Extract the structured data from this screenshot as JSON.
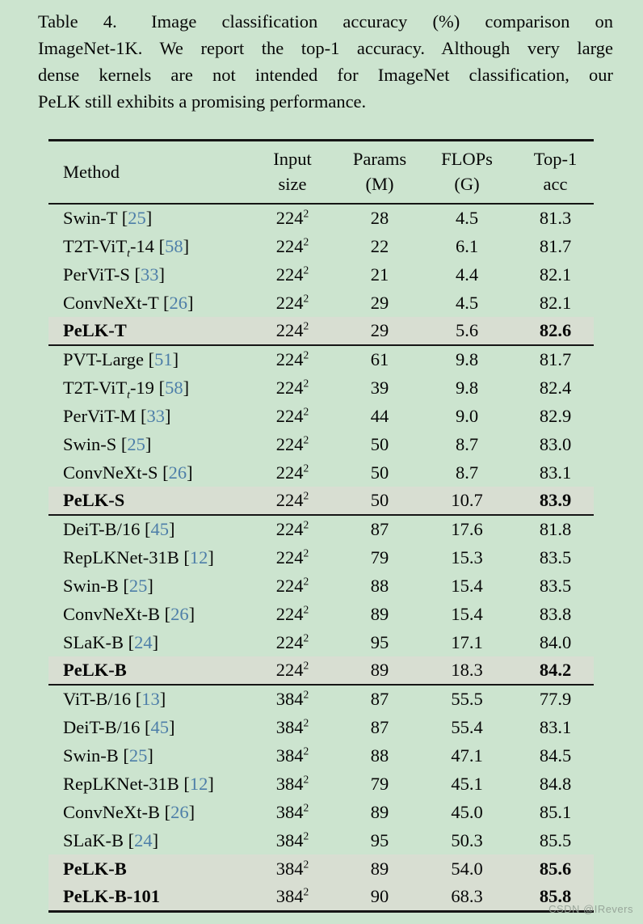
{
  "colors": {
    "background": "#cce4cf",
    "highlight_row": "#d8ded2",
    "citation_blue": "#4d7ea8",
    "rule": "#151515",
    "watermark_gray": "#93a095"
  },
  "caption": {
    "lines": [
      "Table 4.  Image classification accuracy (%) comparison on",
      "ImageNet-1K. We report the top-1 accuracy. Although very large",
      "dense kernels are not intended for ImageNet classification, our",
      "PeLK still exhibits a promising performance."
    ]
  },
  "table": {
    "cite_brackets": [
      "[",
      "]"
    ],
    "header": {
      "method": "Method",
      "cols": [
        {
          "line1": "Input",
          "line2": "size"
        },
        {
          "line1": "Params",
          "line2": "(M)"
        },
        {
          "line1": "FLOPs",
          "line2": "(G)"
        },
        {
          "line1": "Top-1",
          "line2": "acc"
        }
      ]
    },
    "groups": [
      {
        "rows": [
          {
            "method": "Swin-T",
            "cite": "25",
            "size": "224",
            "size_sup": "2",
            "params": "28",
            "flops": "4.5",
            "top1": "81.3",
            "bold": false
          },
          {
            "method": "T2T-ViT",
            "method_sub": "t",
            "method_rest": "-14",
            "cite": "58",
            "size": "224",
            "size_sup": "2",
            "params": "22",
            "flops": "6.1",
            "top1": "81.7",
            "bold": false
          },
          {
            "method": "PerViT-S",
            "cite": "33",
            "size": "224",
            "size_sup": "2",
            "params": "21",
            "flops": "4.4",
            "top1": "82.1",
            "bold": false
          },
          {
            "method": "ConvNeXt-T",
            "cite": "26",
            "size": "224",
            "size_sup": "2",
            "params": "29",
            "flops": "4.5",
            "top1": "82.1",
            "bold": false
          },
          {
            "method": "PeLK-T",
            "size": "224",
            "size_sup": "2",
            "params": "29",
            "flops": "5.6",
            "top1": "82.6",
            "bold": true
          }
        ]
      },
      {
        "rows": [
          {
            "method": "PVT-Large",
            "cite": "51",
            "size": "224",
            "size_sup": "2",
            "params": "61",
            "flops": "9.8",
            "top1": "81.7",
            "bold": false
          },
          {
            "method": "T2T-ViT",
            "method_sub": "t",
            "method_rest": "-19",
            "cite": "58",
            "size": "224",
            "size_sup": "2",
            "params": "39",
            "flops": "9.8",
            "top1": "82.4",
            "bold": false
          },
          {
            "method": "PerViT-M",
            "cite": "33",
            "size": "224",
            "size_sup": "2",
            "params": "44",
            "flops": "9.0",
            "top1": "82.9",
            "bold": false
          },
          {
            "method": "Swin-S",
            "cite": "25",
            "size": "224",
            "size_sup": "2",
            "params": "50",
            "flops": "8.7",
            "top1": "83.0",
            "bold": false
          },
          {
            "method": "ConvNeXt-S",
            "cite": "26",
            "size": "224",
            "size_sup": "2",
            "params": "50",
            "flops": "8.7",
            "top1": "83.1",
            "bold": false
          },
          {
            "method": "PeLK-S",
            "size": "224",
            "size_sup": "2",
            "params": "50",
            "flops": "10.7",
            "top1": "83.9",
            "bold": true
          }
        ]
      },
      {
        "rows": [
          {
            "method": "DeiT-B/16",
            "cite": "45",
            "size": "224",
            "size_sup": "2",
            "params": "87",
            "flops": "17.6",
            "top1": "81.8",
            "bold": false
          },
          {
            "method": "RepLKNet-31B",
            "cite": "12",
            "size": "224",
            "size_sup": "2",
            "params": "79",
            "flops": "15.3",
            "top1": "83.5",
            "bold": false
          },
          {
            "method": "Swin-B",
            "cite": "25",
            "size": "224",
            "size_sup": "2",
            "params": "88",
            "flops": "15.4",
            "top1": "83.5",
            "bold": false
          },
          {
            "method": "ConvNeXt-B",
            "cite": "26",
            "size": "224",
            "size_sup": "2",
            "params": "89",
            "flops": "15.4",
            "top1": "83.8",
            "bold": false
          },
          {
            "method": "SLaK-B",
            "cite": "24",
            "size": "224",
            "size_sup": "2",
            "params": "95",
            "flops": "17.1",
            "top1": "84.0",
            "bold": false
          },
          {
            "method": "PeLK-B",
            "size": "224",
            "size_sup": "2",
            "params": "89",
            "flops": "18.3",
            "top1": "84.2",
            "bold": true
          }
        ]
      },
      {
        "rows": [
          {
            "method": "ViT-B/16",
            "cite": "13",
            "size": "384",
            "size_sup": "2",
            "params": "87",
            "flops": "55.5",
            "top1": "77.9",
            "bold": false
          },
          {
            "method": "DeiT-B/16",
            "cite": "45",
            "size": "384",
            "size_sup": "2",
            "params": "87",
            "flops": "55.4",
            "top1": "83.1",
            "bold": false
          },
          {
            "method": "Swin-B",
            "cite": "25",
            "size": "384",
            "size_sup": "2",
            "params": "88",
            "flops": "47.1",
            "top1": "84.5",
            "bold": false
          },
          {
            "method": "RepLKNet-31B",
            "cite": "12",
            "size": "384",
            "size_sup": "2",
            "params": "79",
            "flops": "45.1",
            "top1": "84.8",
            "bold": false
          },
          {
            "method": "ConvNeXt-B",
            "cite": "26",
            "size": "384",
            "size_sup": "2",
            "params": "89",
            "flops": "45.0",
            "top1": "85.1",
            "bold": false
          },
          {
            "method": "SLaK-B",
            "cite": "24",
            "size": "384",
            "size_sup": "2",
            "params": "95",
            "flops": "50.3",
            "top1": "85.5",
            "bold": false
          },
          {
            "method": "PeLK-B",
            "size": "384",
            "size_sup": "2",
            "params": "89",
            "flops": "54.0",
            "top1": "85.6",
            "bold": true
          },
          {
            "method": "PeLK-B-101",
            "size": "384",
            "size_sup": "2",
            "params": "90",
            "flops": "68.3",
            "top1": "85.8",
            "bold": true
          }
        ]
      }
    ]
  },
  "watermark": {
    "text": "CSDN @IRevers"
  }
}
